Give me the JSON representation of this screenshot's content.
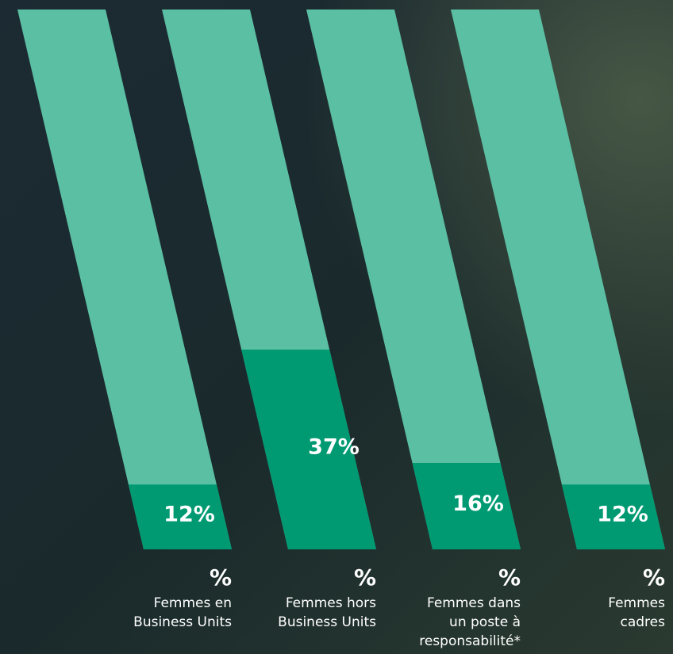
{
  "chart_data": {
    "type": "bar",
    "categories": [
      [
        "Femmes en",
        "Business Units"
      ],
      [
        "Femmes hors",
        "Business Units"
      ],
      [
        "Femmes dans",
        "un poste  à",
        "responsabilité*"
      ],
      [
        "Femmes",
        "cadres"
      ]
    ],
    "values": [
      12,
      37,
      16,
      12
    ],
    "value_labels": [
      "12%",
      "37%",
      "16%",
      "12%"
    ],
    "unit_label": "%",
    "ylim": [
      0,
      100
    ],
    "color": "#009a72",
    "background_color": "#5bbfa3"
  }
}
